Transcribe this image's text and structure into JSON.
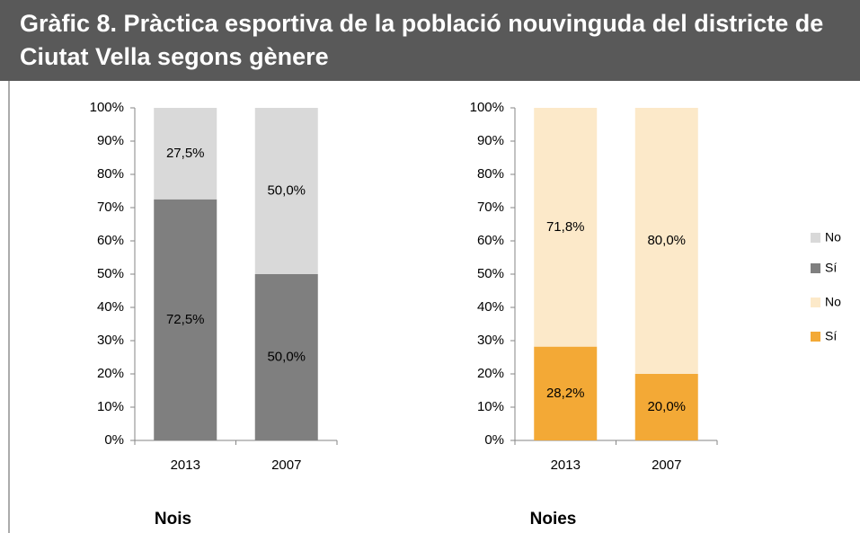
{
  "header": {
    "title": "Gràfic 8. Pràctica esportiva de la població nouvinguda del districte de Ciutat Vella segons gènere"
  },
  "chart_data": [
    {
      "type": "bar",
      "stacked": true,
      "title": "Nois",
      "categories": [
        "2013",
        "2007"
      ],
      "series": [
        {
          "name": "Sí",
          "color": "#7f7f7f",
          "values": [
            72.5,
            50
          ],
          "value_labels": [
            "72,5%",
            "50,0%"
          ]
        },
        {
          "name": "No",
          "color": "#d9d9d9",
          "values": [
            27.5,
            50
          ],
          "value_labels": [
            "27,5%",
            "50,0%"
          ]
        }
      ],
      "ylim": [
        0,
        100
      ],
      "yticks": [
        {
          "value": 0,
          "label": "0%"
        },
        {
          "value": 10,
          "label": "10%"
        },
        {
          "value": 20,
          "label": "20%"
        },
        {
          "value": 30,
          "label": "30%"
        },
        {
          "value": 40,
          "label": "40%"
        },
        {
          "value": 50,
          "label": "50%"
        },
        {
          "value": 60,
          "label": "60%"
        },
        {
          "value": 70,
          "label": "70%"
        },
        {
          "value": 80,
          "label": "80%"
        },
        {
          "value": 90,
          "label": "90%"
        },
        {
          "value": 100,
          "label": "100%"
        }
      ],
      "grid": false
    },
    {
      "type": "bar",
      "stacked": true,
      "title": "Noies",
      "categories": [
        "2013",
        "2007"
      ],
      "series": [
        {
          "name": "Sí",
          "color": "#f3a936",
          "values": [
            28.2,
            20
          ],
          "value_labels": [
            "28,2%",
            "20,0%"
          ]
        },
        {
          "name": "No",
          "color": "#fce9c9",
          "values": [
            71.8,
            80
          ],
          "value_labels": [
            "71,8%",
            "80,0%"
          ]
        }
      ],
      "ylim": [
        0,
        100
      ],
      "yticks": [
        {
          "value": 0,
          "label": "0%"
        },
        {
          "value": 10,
          "label": "10%"
        },
        {
          "value": 20,
          "label": "20%"
        },
        {
          "value": 30,
          "label": "30%"
        },
        {
          "value": 40,
          "label": "40%"
        },
        {
          "value": 50,
          "label": "50%"
        },
        {
          "value": 60,
          "label": "60%"
        },
        {
          "value": 70,
          "label": "70%"
        },
        {
          "value": 80,
          "label": "80%"
        },
        {
          "value": 90,
          "label": "90%"
        },
        {
          "value": 100,
          "label": "100%"
        }
      ],
      "grid": false
    }
  ]
}
